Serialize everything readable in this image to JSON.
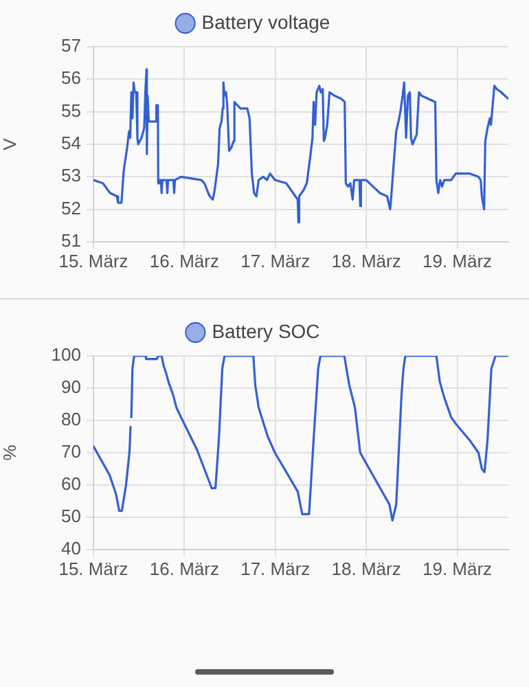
{
  "chart_data": [
    {
      "type": "line",
      "legend": "top",
      "ylabel": "V",
      "grid": true,
      "marker": "none",
      "xlim": [
        "--03-15T00:00",
        "--03-19T13:30"
      ],
      "xticks": [
        {
          "value": "--03-15",
          "label": "15. März"
        },
        {
          "value": "--03-16",
          "label": "16. März"
        },
        {
          "value": "--03-17",
          "label": "17. März"
        },
        {
          "value": "--03-18",
          "label": "18. März"
        },
        {
          "value": "--03-19",
          "label": "19. März"
        }
      ],
      "ylim": [
        51,
        57
      ],
      "yticks": [
        51,
        52,
        53,
        54,
        55,
        56,
        57
      ],
      "series": [
        {
          "name": "Battery voltage",
          "color": "#3460d4",
          "x": [
            "--03-15T00:00",
            "--03-15T02:30",
            "--03-15T04:24",
            "--03-15T06:12",
            "--03-15T06:30",
            "--03-15T07:24",
            "--03-15T08:00",
            "--03-15T08:54",
            "--03-15T09:24",
            "--03-15T09:42",
            "--03-15T10:00",
            "--03-15T10:18",
            "--03-15T10:36",
            "--03-15T10:54",
            "--03-15T11:18",
            "--03-15T11:36",
            "--03-15T11:48",
            "--03-15T12:42",
            "--03-15T13:24",
            "--03-15T13:42",
            "--03-15T14:00",
            "--03-15T14:06",
            "--03-15T14:18",
            "--03-15T14:36",
            "--03-15T16:24",
            "--03-15T16:36",
            "--03-15T17:00",
            "--03-15T17:06",
            "--03-15T17:24",
            "--03-15T17:48",
            "--03-15T18:00",
            "--03-15T18:12",
            "--03-15T19:18",
            "--03-15T19:30",
            "--03-15T19:42",
            "--03-15T21:06",
            "--03-15T21:18",
            "--03-15T21:30",
            "--03-15T23:06",
            "--03-16T04:30",
            "--03-16T05:18",
            "--03-16T06:18",
            "--03-16T06:42",
            "--03-16T07:30",
            "--03-16T08:00",
            "--03-16T08:54",
            "--03-16T09:18",
            "--03-16T09:48",
            "--03-16T10:06",
            "--03-16T10:18",
            "--03-16T10:36",
            "--03-16T11:00",
            "--03-16T11:18",
            "--03-16T11:48",
            "--03-16T12:24",
            "--03-16T13:00",
            "--03-16T13:12",
            "--03-16T14:48",
            "--03-16T16:36",
            "--03-16T17:12",
            "--03-16T17:48",
            "--03-16T18:24",
            "--03-16T19:00",
            "--03-16T19:36",
            "--03-16T20:48",
            "--03-16T21:48",
            "--03-16T22:36",
            "--03-16T23:54",
            "--03-17T02:54",
            "--03-17T04:42",
            "--03-17T05:54",
            "--03-17T06:06",
            "--03-17T06:18",
            "--03-17T07:30",
            "--03-17T08:18",
            "--03-17T09:18",
            "--03-17T09:48",
            "--03-17T10:06",
            "--03-17T10:30",
            "--03-17T10:54",
            "--03-17T11:36",
            "--03-17T12:00",
            "--03-17T12:30",
            "--03-17T12:48",
            "--03-17T13:06",
            "--03-17T13:42",
            "--03-17T14:18",
            "--03-17T15:30",
            "--03-17T17:24",
            "--03-17T18:18",
            "--03-17T18:36",
            "--03-17T19:12",
            "--03-17T19:48",
            "--03-17T20:24",
            "--03-17T20:48",
            "--03-17T22:12",
            "--03-17T22:24",
            "--03-17T22:36",
            "--03-18T00:00",
            "--03-18T01:48",
            "--03-18T03:36",
            "--03-18T05:30",
            "--03-18T06:18",
            "--03-18T06:36",
            "--03-18T07:18",
            "--03-18T07:54",
            "--03-18T08:30",
            "--03-18T09:00",
            "--03-18T09:36",
            "--03-18T10:00",
            "--03-18T10:30",
            "--03-18T11:00",
            "--03-18T11:30",
            "--03-18T11:48",
            "--03-18T12:12",
            "--03-18T13:18",
            "--03-18T13:54",
            "--03-18T14:30",
            "--03-18T16:18",
            "--03-18T18:12",
            "--03-18T18:30",
            "--03-18T19:00",
            "--03-18T19:30",
            "--03-18T20:00",
            "--03-18T20:36",
            "--03-18T22:24",
            "--03-18T23:36",
            "--03-19T03:12",
            "--03-19T05:36",
            "--03-19T06:12",
            "--03-19T06:30",
            "--03-19T07:06",
            "--03-19T07:24",
            "--03-19T08:00",
            "--03-19T08:36",
            "--03-19T08:54",
            "--03-19T09:12",
            "--03-19T09:48",
            "--03-19T10:24",
            "--03-19T11:36",
            "--03-19T12:30",
            "--03-19T13:30"
          ],
          "values": [
            52.9,
            52.8,
            52.5,
            52.4,
            52.2,
            52.2,
            53.2,
            53.9,
            54.4,
            54.2,
            55.6,
            54.8,
            55.9,
            55.6,
            55.6,
            54.2,
            54.0,
            54.2,
            54.5,
            55.6,
            56.3,
            53.7,
            55.5,
            54.7,
            54.7,
            55.2,
            55.2,
            52.8,
            52.9,
            52.9,
            52.5,
            52.9,
            52.9,
            52.5,
            52.9,
            52.9,
            52.5,
            52.9,
            53.0,
            52.9,
            52.8,
            52.5,
            52.4,
            52.3,
            52.6,
            53.4,
            54.5,
            54.7,
            55.1,
            55.9,
            55.5,
            55.6,
            55.2,
            53.8,
            53.9,
            54.1,
            55.3,
            55.1,
            55.1,
            54.8,
            53.1,
            52.5,
            52.4,
            52.9,
            53.0,
            52.9,
            53.1,
            52.9,
            52.8,
            52.5,
            52.3,
            51.6,
            52.4,
            52.6,
            52.8,
            53.7,
            54.2,
            55.3,
            54.6,
            55.6,
            55.8,
            55.6,
            55.7,
            54.1,
            54.2,
            54.6,
            55.6,
            55.5,
            55.4,
            55.3,
            52.8,
            52.7,
            52.8,
            52.3,
            52.9,
            52.9,
            52.1,
            52.9,
            52.9,
            52.7,
            52.5,
            52.4,
            52.0,
            52.4,
            53.5,
            54.4,
            54.7,
            55.0,
            55.5,
            55.9,
            54.2,
            55.5,
            55.6,
            54.2,
            54.0,
            54.3,
            55.6,
            55.5,
            55.4,
            55.3,
            52.9,
            52.5,
            52.9,
            52.7,
            52.9,
            52.9,
            53.1,
            53.1,
            53.0,
            52.9,
            52.4,
            52.0,
            54.1,
            54.5,
            54.8,
            54.6,
            55.0,
            55.8,
            55.7,
            55.6,
            55.5,
            55.4
          ]
        }
      ]
    },
    {
      "type": "line",
      "legend": "top",
      "ylabel": "%",
      "grid": true,
      "marker": "none",
      "xlim": [
        "--03-15T00:00",
        "--03-19T13:30"
      ],
      "xticks": [
        {
          "value": "--03-15",
          "label": "15. März"
        },
        {
          "value": "--03-16",
          "label": "16. März"
        },
        {
          "value": "--03-17",
          "label": "17. März"
        },
        {
          "value": "--03-18",
          "label": "18. März"
        },
        {
          "value": "--03-19",
          "label": "19. März"
        }
      ],
      "ylim": [
        40,
        100
      ],
      "yticks": [
        40,
        50,
        60,
        70,
        80,
        90,
        100
      ],
      "series": [
        {
          "name": "Battery SOC",
          "color": "#3460d4",
          "x": [
            "--03-15T00:00",
            "--03-15T04:18",
            "--03-15T06:00",
            "--03-15T06:48",
            "--03-15T07:30",
            "--03-15T08:36",
            "--03-15T09:30",
            "--03-15T09:48",
            "--03-15T09:54",
            "--03-15T10:00",
            "--03-15T10:18",
            "--03-15T10:45",
            "--03-15T13:48",
            "--03-15T13:54",
            "--03-15T16:42",
            "--03-15T17:06",
            "--03-15T18:00",
            "--03-15T18:30",
            "--03-15T19:06",
            "--03-15T19:48",
            "--03-15T21:00",
            "--03-15T21:54",
            "--03-15T23:06",
            "--03-16T03:18",
            "--03-16T06:54",
            "--03-16T07:12",
            "--03-16T08:12",
            "--03-16T09:06",
            "--03-16T10:00",
            "--03-16T10:36",
            "--03-16T18:12",
            "--03-16T18:42",
            "--03-16T19:36",
            "--03-16T21:12",
            "--03-16T22:00",
            "--03-16T23:54",
            "--03-17T05:54",
            "--03-17T07:06",
            "--03-17T08:54",
            "--03-17T10:06",
            "--03-17T11:18",
            "--03-17T11:54",
            "--03-17T18:12",
            "--03-17T19:30",
            "--03-17T21:00",
            "--03-17T22:24",
            "--03-18T06:06",
            "--03-18T06:54",
            "--03-18T07:54",
            "--03-18T09:18",
            "--03-18T09:48",
            "--03-18T10:18",
            "--03-18T18:30",
            "--03-18T19:24",
            "--03-18T20:36",
            "--03-18T22:24",
            "--03-18T23:36",
            "--03-19T03:12",
            "--03-19T05:36",
            "--03-19T06:30",
            "--03-19T07:12",
            "--03-19T08:00",
            "--03-19T09:00",
            "--03-19T10:06",
            "--03-19T13:30"
          ],
          "values": [
            72,
            63,
            57,
            52,
            52,
            60,
            70,
            78,
            null,
            81,
            96,
            100,
            100,
            99,
            99,
            100,
            100,
            97,
            95,
            92,
            88,
            84,
            81,
            71,
            60,
            59,
            59,
            74,
            96,
            100,
            100,
            91,
            84,
            78,
            75,
            70,
            58,
            51,
            51,
            74,
            96,
            100,
            100,
            91,
            84,
            70,
            54,
            49,
            54,
            88,
            96,
            100,
            100,
            92,
            87,
            81,
            79,
            74,
            70,
            65,
            64,
            74,
            96,
            100,
            100
          ]
        }
      ]
    }
  ]
}
